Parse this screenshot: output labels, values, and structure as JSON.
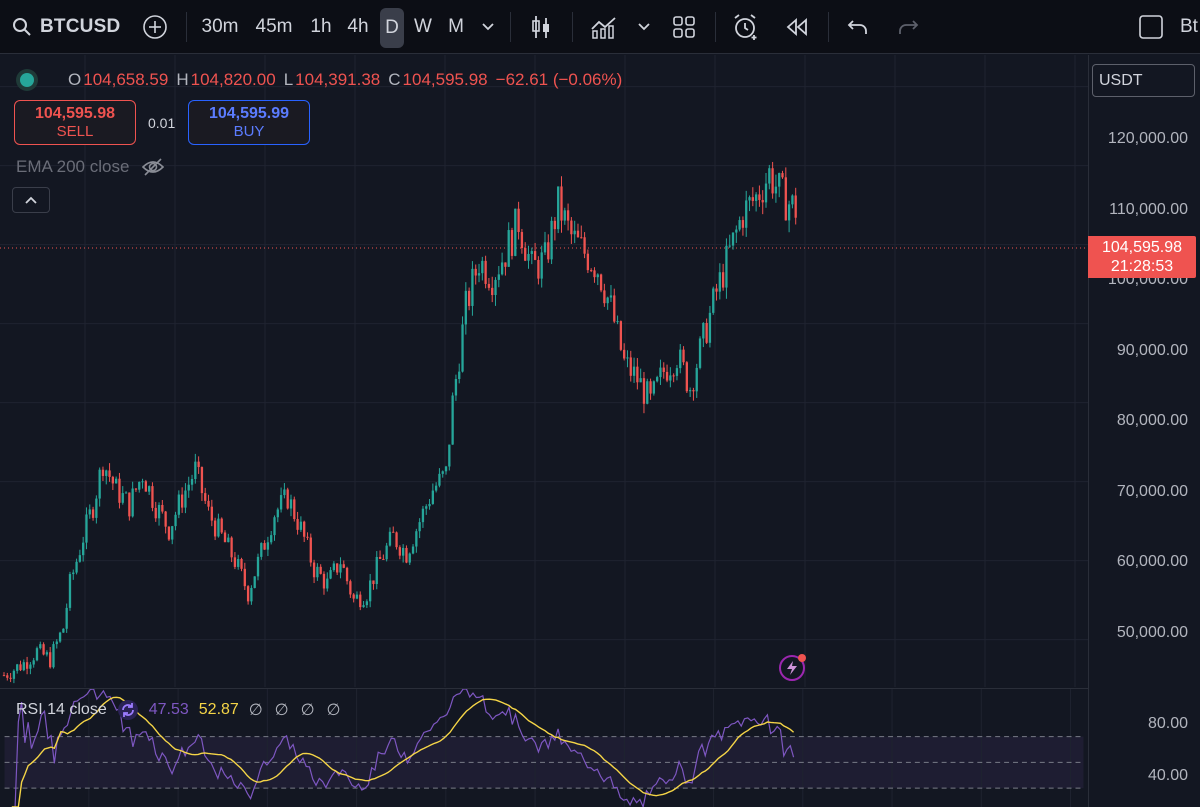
{
  "toolbar": {
    "symbol": "BTCUSD",
    "timeframes": [
      "30m",
      "45m",
      "1h",
      "4h",
      "D",
      "W",
      "M"
    ],
    "active_timeframe": "D",
    "right_text": "Bt"
  },
  "legend": {
    "open_label": "O",
    "open": "104,658.59",
    "high_label": "H",
    "high": "104,820.00",
    "low_label": "L",
    "low": "104,391.38",
    "close_label": "C",
    "close": "104,595.98",
    "change": "−62.61 (−0.06%)"
  },
  "trade": {
    "sell_price": "104,595.98",
    "sell_label": "SELL",
    "quantity": "0.01",
    "buy_price": "104,595.99",
    "buy_label": "BUY"
  },
  "indicators": {
    "ema_label": "EMA 200 close",
    "rsi_label": "RSI 14 close",
    "rsi_value": "47.53",
    "rsi_ma_value": "52.87",
    "rsi_na": [
      "∅",
      "∅",
      "∅",
      "∅"
    ]
  },
  "price_scale": {
    "currency": "USDT",
    "labels": [
      "120,000.00",
      "110,000.00",
      "100,000.00",
      "90,000.00",
      "80,000.00",
      "70,000.00",
      "60,000.00",
      "50,000.00"
    ],
    "last_price": "104,595.98",
    "countdown": "21:28:53",
    "rsi_labels": [
      "80.00",
      "40.00"
    ]
  },
  "colors": {
    "up": "#26a69a",
    "down": "#ef5350",
    "rsi": "#7e57c2",
    "rsi_ma": "#f5d547",
    "background": "#131722"
  },
  "chart_data": {
    "type": "candlestick",
    "title": "",
    "ylim": [
      44000,
      124000
    ],
    "x_count": 160,
    "close_path": [
      [
        0,
        45500
      ],
      [
        6,
        47000
      ],
      [
        10,
        48500
      ],
      [
        14,
        47500
      ],
      [
        18,
        51500
      ],
      [
        20,
        57000
      ],
      [
        24,
        63000
      ],
      [
        27,
        67000
      ],
      [
        30,
        72500
      ],
      [
        34,
        69000
      ],
      [
        38,
        67000
      ],
      [
        42,
        71000
      ],
      [
        46,
        67000
      ],
      [
        50,
        64000
      ],
      [
        54,
        68000
      ],
      [
        58,
        71500
      ],
      [
        62,
        66000
      ],
      [
        66,
        63000
      ],
      [
        70,
        60000
      ],
      [
        74,
        56000
      ],
      [
        78,
        61000
      ],
      [
        82,
        66000
      ],
      [
        86,
        68000
      ],
      [
        90,
        64000
      ],
      [
        94,
        59000
      ],
      [
        98,
        57000
      ],
      [
        102,
        60000
      ],
      [
        106,
        55000
      ],
      [
        110,
        56000
      ],
      [
        114,
        60000
      ],
      [
        118,
        63000
      ],
      [
        122,
        61000
      ],
      [
        126,
        65000
      ],
      [
        130,
        69000
      ],
      [
        134,
        71000
      ],
      [
        136,
        80000
      ],
      [
        140,
        92000
      ],
      [
        144,
        98000
      ],
      [
        148,
        96000
      ],
      [
        152,
        99000
      ],
      [
        156,
        103000
      ],
      [
        160,
        97000
      ],
      [
        164,
        98000
      ],
      [
        168,
        105000
      ],
      [
        172,
        101000
      ],
      [
        176,
        99000
      ],
      [
        180,
        97000
      ],
      [
        184,
        92000
      ],
      [
        188,
        85000
      ],
      [
        192,
        83000
      ],
      [
        196,
        80000
      ],
      [
        200,
        84000
      ],
      [
        204,
        86000
      ],
      [
        208,
        82000
      ],
      [
        212,
        88000
      ],
      [
        216,
        94000
      ],
      [
        220,
        99000
      ],
      [
        224,
        104000
      ],
      [
        228,
        106000
      ],
      [
        232,
        109000
      ],
      [
        236,
        106000
      ],
      [
        240,
        104500
      ]
    ],
    "rsi_ylim": [
      25,
      90
    ],
    "rsi_levels": [
      70,
      50,
      30
    ]
  }
}
